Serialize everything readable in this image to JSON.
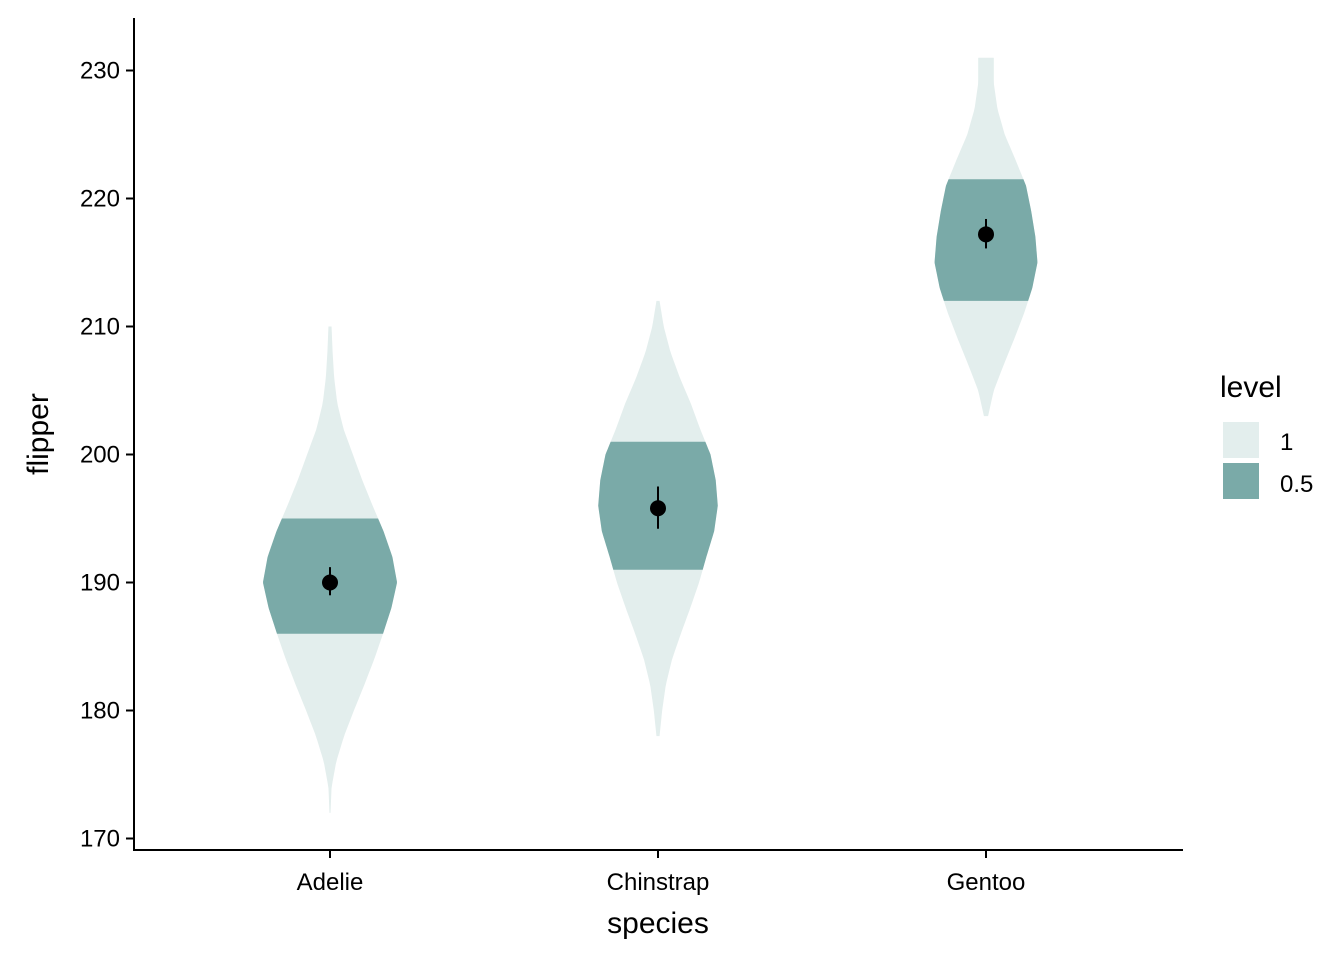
{
  "chart_data": {
    "type": "violin",
    "title": "",
    "xlabel": "species",
    "ylabel": "flipper",
    "categories": [
      "Adelie",
      "Chinstrap",
      "Gentoo"
    ],
    "ylim": [
      169,
      234
    ],
    "yticks": [
      170,
      180,
      190,
      200,
      210,
      220,
      230
    ],
    "grid": false,
    "legend": {
      "title": "level",
      "placement": "right",
      "entries": [
        {
          "label": "1",
          "color": "#e3eeed"
        },
        {
          "label": "0.5",
          "color": "#7aaaa8"
        }
      ]
    },
    "series": [
      {
        "category": "Adelie",
        "range": [
          172,
          210
        ],
        "interval_50": [
          186,
          195
        ],
        "mean": 190,
        "mean_interval": [
          189,
          191.2
        ],
        "density": [
          [
            172,
            0.2
          ],
          [
            174,
            0.6
          ],
          [
            176,
            2.4
          ],
          [
            178,
            5.4
          ],
          [
            180,
            9.2
          ],
          [
            182,
            13.2
          ],
          [
            184,
            17.0
          ],
          [
            186,
            20.4
          ],
          [
            188,
            23.6
          ],
          [
            190,
            25.8
          ],
          [
            192,
            24.0
          ],
          [
            194,
            20.6
          ],
          [
            196,
            16.4
          ],
          [
            198,
            12.4
          ],
          [
            200,
            8.8
          ],
          [
            202,
            5.2
          ],
          [
            204,
            2.8
          ],
          [
            206,
            1.6
          ],
          [
            208,
            1.0
          ],
          [
            210,
            0.6
          ]
        ]
      },
      {
        "category": "Chinstrap",
        "range": [
          178,
          212
        ],
        "interval_50": [
          191,
          201
        ],
        "mean": 195.8,
        "mean_interval": [
          194.2,
          197.5
        ],
        "density": [
          [
            178,
            0.6
          ],
          [
            180,
            1.6
          ],
          [
            182,
            3.0
          ],
          [
            184,
            5.4
          ],
          [
            186,
            8.8
          ],
          [
            188,
            12.4
          ],
          [
            190,
            15.8
          ],
          [
            192,
            18.6
          ],
          [
            194,
            21.6
          ],
          [
            196,
            23.0
          ],
          [
            198,
            22.2
          ],
          [
            200,
            20.2
          ],
          [
            202,
            16.2
          ],
          [
            204,
            12.6
          ],
          [
            206,
            8.4
          ],
          [
            208,
            4.8
          ],
          [
            210,
            2.2
          ],
          [
            212,
            0.6
          ]
        ]
      },
      {
        "category": "Gentoo",
        "range": [
          203,
          231
        ],
        "interval_50": [
          212,
          221.5
        ],
        "mean": 217.2,
        "mean_interval": [
          216.1,
          218.4
        ],
        "density": [
          [
            203,
            0.8
          ],
          [
            205,
            3.0
          ],
          [
            207,
            6.8
          ],
          [
            209,
            10.8
          ],
          [
            211,
            14.6
          ],
          [
            213,
            17.8
          ],
          [
            215,
            19.8
          ],
          [
            217,
            19.0
          ],
          [
            219,
            17.4
          ],
          [
            221,
            15.4
          ],
          [
            223,
            11.4
          ],
          [
            225,
            7.2
          ],
          [
            227,
            4.4
          ],
          [
            229,
            3.0
          ],
          [
            231,
            3.0
          ]
        ]
      }
    ]
  },
  "colors": {
    "outer": "#e3eeed",
    "inner": "#7aaaa8",
    "point": "#000000",
    "axis": "#000000"
  }
}
